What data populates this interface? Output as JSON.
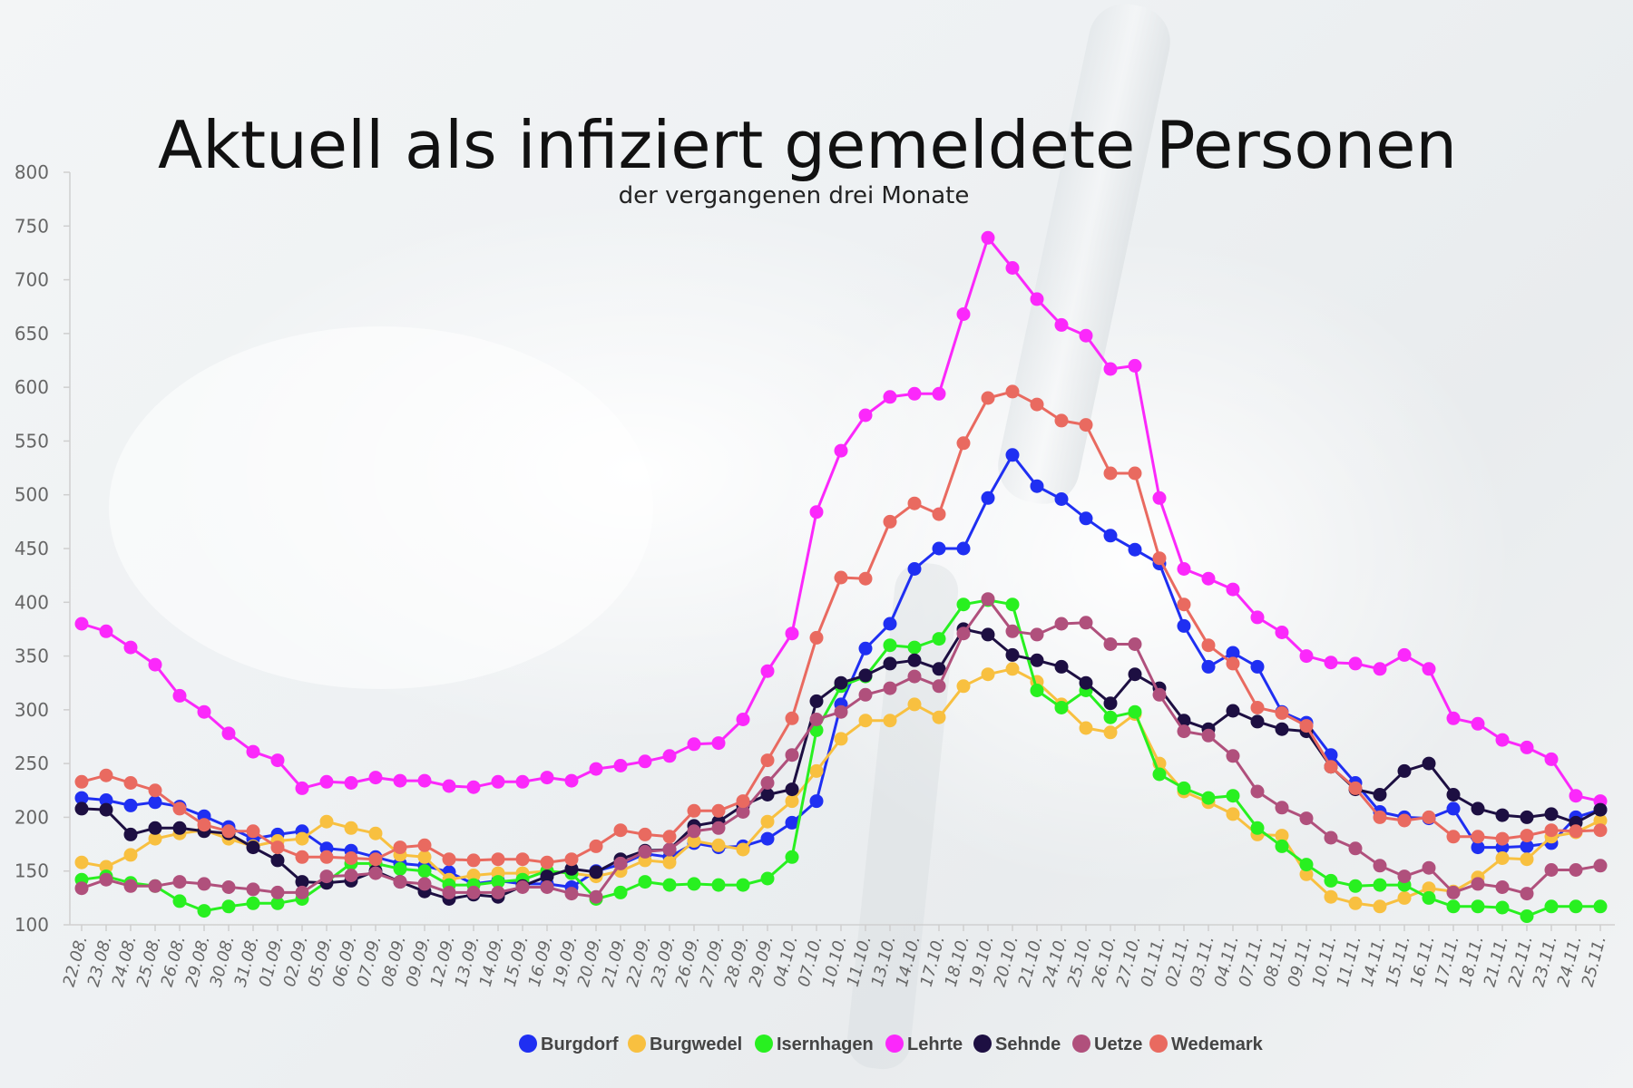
{
  "chart_data": {
    "type": "line",
    "title": "Aktuell als infiziert gemeldete Personen",
    "subtitle": "der vergangenen drei Monate",
    "xlabel": "",
    "ylabel": "",
    "ylim": [
      100,
      800
    ],
    "yticks": [
      100,
      150,
      200,
      250,
      300,
      350,
      400,
      450,
      500,
      550,
      600,
      650,
      700,
      750,
      800
    ],
    "legend_position": "bottom",
    "grid": false,
    "categories": [
      "22.08.",
      "23.08.",
      "24.08.",
      "25.08.",
      "26.08.",
      "29.08.",
      "30.08.",
      "31.08.",
      "01.09.",
      "02.09.",
      "05.09.",
      "06.09.",
      "07.09.",
      "08.09.",
      "09.09.",
      "12.09.",
      "13.09.",
      "14.09.",
      "15.09.",
      "16.09.",
      "19.09.",
      "20.09.",
      "21.09.",
      "22.09.",
      "23.09.",
      "26.09.",
      "27.09.",
      "28.09.",
      "29.09.",
      "04.10.",
      "07.10.",
      "10.10.",
      "11.10.",
      "13.10.",
      "14.10.",
      "17.10.",
      "18.10.",
      "19.10.",
      "20.10.",
      "21.10.",
      "24.10.",
      "25.10.",
      "26.10.",
      "27.10.",
      "01.11.",
      "02.11.",
      "03.11.",
      "04.11.",
      "07.11.",
      "08.11.",
      "09.11.",
      "10.11.",
      "11.11.",
      "14.11.",
      "15.11.",
      "16.11.",
      "17.11.",
      "18.11.",
      "21.11.",
      "22.11.",
      "23.11.",
      "24.11.",
      "25.11."
    ],
    "series": [
      {
        "name": "Burgdorf",
        "color": "#1f2ff2",
        "values": [
          218,
          216,
          211,
          214,
          210,
          201,
          191,
          180,
          184,
          187,
          171,
          169,
          163,
          157,
          155,
          149,
          138,
          141,
          138,
          138,
          135,
          150,
          156,
          166,
          163,
          176,
          172,
          173,
          180,
          195,
          215,
          305,
          357,
          380,
          431,
          450,
          450,
          497,
          537,
          508,
          496,
          478,
          462,
          449,
          436,
          378,
          340,
          353,
          340,
          298,
          288,
          258,
          232,
          205,
          200,
          199,
          208,
          172,
          172,
          173,
          176,
          200,
          207
        ]
      },
      {
        "name": "Burgwedel",
        "color": "#f8c040",
        "values": [
          158,
          154,
          165,
          180,
          185,
          188,
          180,
          173,
          178,
          180,
          196,
          190,
          185,
          165,
          163,
          142,
          146,
          148,
          148,
          150,
          148,
          145,
          150,
          160,
          158,
          178,
          174,
          170,
          196,
          215,
          243,
          273,
          290,
          290,
          305,
          293,
          322,
          333,
          338,
          326,
          305,
          283,
          279,
          296,
          250,
          224,
          214,
          203,
          184,
          183,
          147,
          126,
          120,
          117,
          125,
          134,
          131,
          144,
          162,
          161,
          182,
          186,
          197
        ]
      },
      {
        "name": "Isernhagen",
        "color": "#28f020",
        "values": [
          142,
          145,
          139,
          136,
          122,
          113,
          117,
          120,
          120,
          124,
          140,
          157,
          157,
          152,
          150,
          137,
          137,
          140,
          142,
          150,
          148,
          124,
          130,
          140,
          137,
          138,
          137,
          137,
          143,
          163,
          281,
          322,
          331,
          360,
          358,
          366,
          398,
          402,
          398,
          318,
          302,
          318,
          293,
          298,
          240,
          227,
          218,
          220,
          190,
          173,
          156,
          141,
          136,
          137,
          137,
          125,
          117,
          117,
          116,
          108,
          117,
          117,
          117
        ]
      },
      {
        "name": "Lehrte",
        "color": "#fb28fb",
        "values": [
          380,
          373,
          358,
          342,
          313,
          298,
          278,
          261,
          253,
          227,
          233,
          232,
          237,
          234,
          234,
          229,
          228,
          233,
          233,
          237,
          234,
          245,
          248,
          252,
          257,
          268,
          269,
          291,
          336,
          371,
          484,
          541,
          574,
          591,
          594,
          594,
          668,
          739,
          711,
          682,
          658,
          648,
          617,
          620,
          497,
          431,
          422,
          412,
          386,
          372,
          350,
          344,
          343,
          338,
          351,
          338,
          292,
          287,
          272,
          265,
          254,
          220,
          215
        ]
      },
      {
        "name": "Sehnde",
        "color": "#1d0f42",
        "values": [
          208,
          207,
          184,
          190,
          190,
          187,
          185,
          172,
          160,
          140,
          139,
          141,
          150,
          140,
          131,
          124,
          128,
          126,
          136,
          145,
          152,
          149,
          161,
          169,
          170,
          192,
          196,
          211,
          221,
          226,
          308,
          325,
          332,
          343,
          346,
          338,
          375,
          370,
          351,
          346,
          340,
          325,
          306,
          333,
          320,
          290,
          282,
          299,
          289,
          282,
          280,
          247,
          226,
          221,
          243,
          250,
          221,
          208,
          202,
          200,
          203,
          195,
          207
        ]
      },
      {
        "name": "Uetze",
        "color": "#b0507c",
        "values": [
          134,
          142,
          136,
          136,
          140,
          138,
          135,
          133,
          130,
          130,
          145,
          146,
          148,
          140,
          138,
          130,
          130,
          130,
          135,
          135,
          129,
          126,
          157,
          168,
          170,
          187,
          190,
          205,
          232,
          258,
          291,
          298,
          314,
          320,
          331,
          322,
          371,
          403,
          373,
          370,
          380,
          381,
          361,
          361,
          314,
          280,
          276,
          257,
          224,
          209,
          199,
          181,
          171,
          155,
          145,
          153,
          130,
          138,
          135,
          129,
          151,
          151,
          155
        ]
      },
      {
        "name": "Wedemark",
        "color": "#e96a60",
        "values": [
          233,
          239,
          232,
          225,
          208,
          193,
          187,
          187,
          172,
          163,
          163,
          162,
          161,
          172,
          174,
          161,
          160,
          161,
          161,
          158,
          161,
          173,
          188,
          184,
          182,
          206,
          206,
          215,
          253,
          292,
          367,
          423,
          422,
          475,
          492,
          482,
          548,
          590,
          596,
          584,
          569,
          565,
          520,
          520,
          441,
          398,
          360,
          343,
          302,
          297,
          285,
          247,
          227,
          200,
          197,
          200,
          182,
          182,
          180,
          183,
          188,
          187,
          188
        ]
      }
    ]
  }
}
